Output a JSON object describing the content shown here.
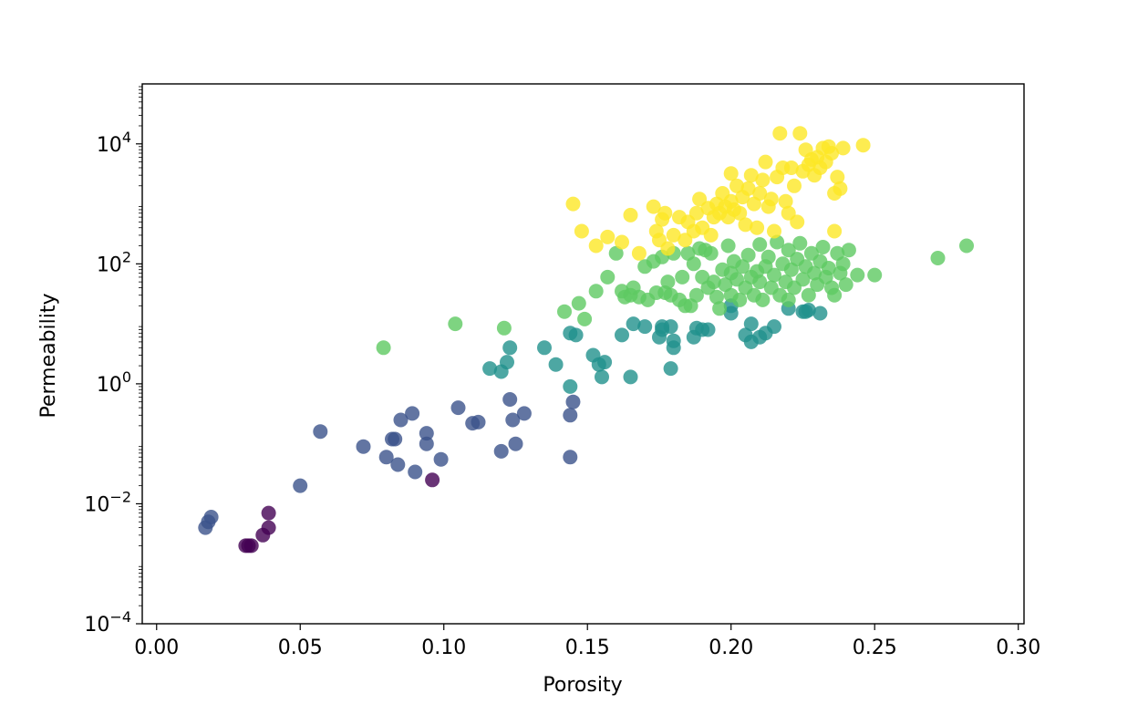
{
  "chart_data": {
    "type": "scatter",
    "xlabel": "Porosity",
    "ylabel": "Permeability",
    "xlim": [
      -0.005,
      0.302
    ],
    "ylim": [
      0.0001,
      100000
    ],
    "yscale": "log",
    "grid": false,
    "x_ticks": [
      0.0,
      0.05,
      0.1,
      0.15,
      0.2,
      0.25,
      0.3
    ],
    "x_tick_labels": [
      "0.00",
      "0.05",
      "0.10",
      "0.15",
      "0.20",
      "0.25",
      "0.30"
    ],
    "y_ticks": [
      0.0001,
      0.01,
      1,
      100,
      10000
    ],
    "y_tick_labels": [
      {
        "base": "10",
        "exp": "−4"
      },
      {
        "base": "10",
        "exp": "−2"
      },
      {
        "base": "10",
        "exp": "0"
      },
      {
        "base": "10",
        "exp": "2"
      },
      {
        "base": "10",
        "exp": "4"
      }
    ],
    "colors": [
      "#440154",
      "#3b528b",
      "#21918c",
      "#5ec962",
      "#fde725"
    ],
    "series": [
      {
        "color_index": 0,
        "points": [
          [
            0.031,
            0.002
          ],
          [
            0.032,
            0.002
          ],
          [
            0.033,
            0.002
          ],
          [
            0.037,
            0.003
          ],
          [
            0.039,
            0.004
          ],
          [
            0.039,
            0.007
          ],
          [
            0.096,
            0.025
          ]
        ]
      },
      {
        "color_index": 1,
        "points": [
          [
            0.017,
            0.004
          ],
          [
            0.018,
            0.005
          ],
          [
            0.019,
            0.006
          ],
          [
            0.05,
            0.02
          ],
          [
            0.057,
            0.16
          ],
          [
            0.072,
            0.09
          ],
          [
            0.08,
            0.06
          ],
          [
            0.082,
            0.12
          ],
          [
            0.083,
            0.12
          ],
          [
            0.084,
            0.045
          ],
          [
            0.085,
            0.25
          ],
          [
            0.089,
            0.32
          ],
          [
            0.09,
            0.034
          ],
          [
            0.094,
            0.15
          ],
          [
            0.094,
            0.1
          ],
          [
            0.099,
            0.055
          ],
          [
            0.105,
            0.4
          ],
          [
            0.11,
            0.22
          ],
          [
            0.112,
            0.23
          ],
          [
            0.12,
            0.075
          ],
          [
            0.123,
            0.55
          ],
          [
            0.124,
            0.25
          ],
          [
            0.125,
            0.1
          ],
          [
            0.128,
            0.32
          ],
          [
            0.144,
            0.3
          ],
          [
            0.144,
            0.06
          ],
          [
            0.145,
            0.5
          ]
        ]
      },
      {
        "color_index": 2,
        "points": [
          [
            0.116,
            1.8
          ],
          [
            0.12,
            1.6
          ],
          [
            0.122,
            2.3
          ],
          [
            0.123,
            4
          ],
          [
            0.135,
            4
          ],
          [
            0.139,
            2.1
          ],
          [
            0.144,
            0.9
          ],
          [
            0.144,
            7
          ],
          [
            0.146,
            6.5
          ],
          [
            0.152,
            3
          ],
          [
            0.154,
            2.1
          ],
          [
            0.155,
            1.3
          ],
          [
            0.156,
            2.3
          ],
          [
            0.162,
            6.5
          ],
          [
            0.165,
            1.3
          ],
          [
            0.166,
            10
          ],
          [
            0.17,
            9
          ],
          [
            0.175,
            6
          ],
          [
            0.176,
            8
          ],
          [
            0.176,
            9
          ],
          [
            0.179,
            9
          ],
          [
            0.179,
            1.8
          ],
          [
            0.18,
            4
          ],
          [
            0.18,
            5.2
          ],
          [
            0.187,
            6
          ],
          [
            0.188,
            8.5
          ],
          [
            0.19,
            8
          ],
          [
            0.192,
            8
          ],
          [
            0.2,
            15
          ],
          [
            0.2,
            20
          ],
          [
            0.205,
            6.5
          ],
          [
            0.207,
            5
          ],
          [
            0.207,
            10
          ],
          [
            0.21,
            6
          ],
          [
            0.212,
            7
          ],
          [
            0.215,
            9
          ],
          [
            0.22,
            18
          ],
          [
            0.225,
            16
          ],
          [
            0.226,
            16
          ],
          [
            0.227,
            17
          ],
          [
            0.231,
            15
          ]
        ]
      },
      {
        "color_index": 3,
        "points": [
          [
            0.079,
            4
          ],
          [
            0.104,
            10
          ],
          [
            0.121,
            8.5
          ],
          [
            0.142,
            16
          ],
          [
            0.147,
            22
          ],
          [
            0.149,
            12
          ],
          [
            0.153,
            35
          ],
          [
            0.157,
            60
          ],
          [
            0.16,
            150
          ],
          [
            0.162,
            35
          ],
          [
            0.163,
            28
          ],
          [
            0.165,
            30
          ],
          [
            0.166,
            40
          ],
          [
            0.168,
            28
          ],
          [
            0.17,
            90
          ],
          [
            0.171,
            25
          ],
          [
            0.173,
            110
          ],
          [
            0.174,
            33
          ],
          [
            0.176,
            130
          ],
          [
            0.177,
            33
          ],
          [
            0.178,
            50
          ],
          [
            0.179,
            30
          ],
          [
            0.18,
            150
          ],
          [
            0.182,
            25
          ],
          [
            0.183,
            60
          ],
          [
            0.184,
            20
          ],
          [
            0.185,
            150
          ],
          [
            0.186,
            20
          ],
          [
            0.187,
            100
          ],
          [
            0.188,
            30
          ],
          [
            0.189,
            180
          ],
          [
            0.19,
            60
          ],
          [
            0.191,
            170
          ],
          [
            0.192,
            40
          ],
          [
            0.193,
            150
          ],
          [
            0.194,
            50
          ],
          [
            0.195,
            28
          ],
          [
            0.196,
            18
          ],
          [
            0.197,
            80
          ],
          [
            0.198,
            45
          ],
          [
            0.199,
            200
          ],
          [
            0.2,
            30
          ],
          [
            0.2,
            70
          ],
          [
            0.201,
            110
          ],
          [
            0.202,
            55
          ],
          [
            0.203,
            25
          ],
          [
            0.204,
            90
          ],
          [
            0.205,
            40
          ],
          [
            0.206,
            140
          ],
          [
            0.207,
            60
          ],
          [
            0.208,
            30
          ],
          [
            0.209,
            75
          ],
          [
            0.21,
            210
          ],
          [
            0.21,
            50
          ],
          [
            0.211,
            25
          ],
          [
            0.212,
            90
          ],
          [
            0.213,
            130
          ],
          [
            0.214,
            40
          ],
          [
            0.215,
            65
          ],
          [
            0.216,
            230
          ],
          [
            0.217,
            30
          ],
          [
            0.218,
            100
          ],
          [
            0.219,
            50
          ],
          [
            0.22,
            170
          ],
          [
            0.22,
            25
          ],
          [
            0.221,
            80
          ],
          [
            0.222,
            40
          ],
          [
            0.223,
            120
          ],
          [
            0.224,
            220
          ],
          [
            0.225,
            55
          ],
          [
            0.226,
            90
          ],
          [
            0.227,
            30
          ],
          [
            0.228,
            150
          ],
          [
            0.229,
            70
          ],
          [
            0.23,
            45
          ],
          [
            0.231,
            110
          ],
          [
            0.232,
            190
          ],
          [
            0.233,
            60
          ],
          [
            0.234,
            85
          ],
          [
            0.235,
            40
          ],
          [
            0.236,
            30
          ],
          [
            0.237,
            150
          ],
          [
            0.238,
            70
          ],
          [
            0.239,
            100
          ],
          [
            0.24,
            45
          ],
          [
            0.241,
            170
          ],
          [
            0.244,
            65
          ],
          [
            0.25,
            65
          ],
          [
            0.272,
            125
          ],
          [
            0.282,
            200
          ]
        ]
      },
      {
        "color_index": 4,
        "points": [
          [
            0.145,
            1000
          ],
          [
            0.148,
            350
          ],
          [
            0.153,
            200
          ],
          [
            0.157,
            280
          ],
          [
            0.162,
            230
          ],
          [
            0.165,
            650
          ],
          [
            0.168,
            150
          ],
          [
            0.173,
            900
          ],
          [
            0.174,
            350
          ],
          [
            0.175,
            250
          ],
          [
            0.176,
            550
          ],
          [
            0.177,
            700
          ],
          [
            0.178,
            180
          ],
          [
            0.18,
            300
          ],
          [
            0.182,
            600
          ],
          [
            0.184,
            250
          ],
          [
            0.185,
            500
          ],
          [
            0.187,
            350
          ],
          [
            0.188,
            700
          ],
          [
            0.189,
            1200
          ],
          [
            0.19,
            400
          ],
          [
            0.192,
            850
          ],
          [
            0.193,
            300
          ],
          [
            0.194,
            600
          ],
          [
            0.195,
            1000
          ],
          [
            0.196,
            700
          ],
          [
            0.197,
            1500
          ],
          [
            0.198,
            900
          ],
          [
            0.199,
            600
          ],
          [
            0.2,
            3200
          ],
          [
            0.2,
            1100
          ],
          [
            0.201,
            800
          ],
          [
            0.202,
            2000
          ],
          [
            0.203,
            700
          ],
          [
            0.204,
            1300
          ],
          [
            0.205,
            450
          ],
          [
            0.206,
            1800
          ],
          [
            0.207,
            3000
          ],
          [
            0.208,
            1000
          ],
          [
            0.209,
            400
          ],
          [
            0.21,
            1500
          ],
          [
            0.211,
            2500
          ],
          [
            0.212,
            5000
          ],
          [
            0.213,
            900
          ],
          [
            0.214,
            1200
          ],
          [
            0.215,
            350
          ],
          [
            0.216,
            2800
          ],
          [
            0.217,
            15000
          ],
          [
            0.218,
            4000
          ],
          [
            0.219,
            1100
          ],
          [
            0.22,
            700
          ],
          [
            0.221,
            4000
          ],
          [
            0.222,
            2000
          ],
          [
            0.223,
            500
          ],
          [
            0.224,
            15000
          ],
          [
            0.225,
            3500
          ],
          [
            0.226,
            8000
          ],
          [
            0.227,
            4500
          ],
          [
            0.228,
            5500
          ],
          [
            0.229,
            3000
          ],
          [
            0.23,
            6000
          ],
          [
            0.231,
            4000
          ],
          [
            0.232,
            8500
          ],
          [
            0.233,
            5000
          ],
          [
            0.234,
            9000
          ],
          [
            0.235,
            7000
          ],
          [
            0.236,
            1500
          ],
          [
            0.237,
            2800
          ],
          [
            0.238,
            1800
          ],
          [
            0.236,
            350
          ],
          [
            0.239,
            8500
          ],
          [
            0.246,
            9500
          ]
        ]
      }
    ]
  }
}
